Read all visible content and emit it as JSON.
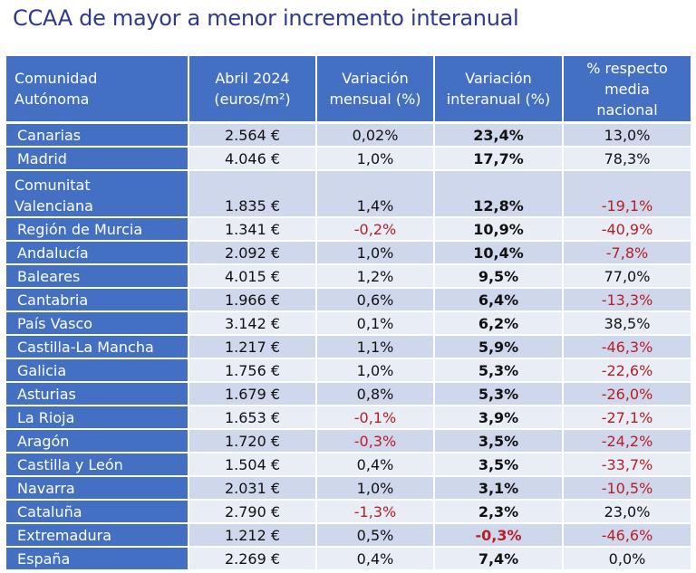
{
  "title": "CCAA de mayor a menor incremento interanual",
  "headers": {
    "community_line1": "Comunidad",
    "community_line2": "Autónoma",
    "price_line1": "Abril 2024",
    "price_line2": "(euros/m²)",
    "monthly_line1": "Variación",
    "monthly_line2": "mensual (%)",
    "annual_line1": "Variación",
    "annual_line2": "interanual (%)",
    "national_line1": "% respecto",
    "national_line2": "media",
    "national_line3": "nacional"
  },
  "rows": [
    {
      "region": "Canarias",
      "price": "2.564 €",
      "monthly": "0,02%",
      "annual": "23,4%",
      "national": "13,0%"
    },
    {
      "region": "Madrid",
      "price": "4.046 €",
      "monthly": "1,0%",
      "annual": "17,7%",
      "national": "78,3%"
    },
    {
      "region_line1": "Comunitat",
      "region_line2": "Valenciana",
      "price": "1.835 €",
      "monthly": "1,4%",
      "annual": "12,8%",
      "national": "-19,1%"
    },
    {
      "region": "Región de Murcia",
      "price": "1.341 €",
      "monthly": "-0,2%",
      "annual": "10,9%",
      "national": "-40,9%"
    },
    {
      "region": "Andalucía",
      "price": "2.092 €",
      "monthly": "1,0%",
      "annual": "10,4%",
      "national": "-7,8%"
    },
    {
      "region": "Baleares",
      "price": "4.015 €",
      "monthly": "1,2%",
      "annual": "9,5%",
      "national": "77,0%"
    },
    {
      "region": "Cantabria",
      "price": "1.966 €",
      "monthly": "0,6%",
      "annual": "6,4%",
      "national": "-13,3%"
    },
    {
      "region": "País Vasco",
      "price": "3.142 €",
      "monthly": "0,1%",
      "annual": "6,2%",
      "national": "38,5%"
    },
    {
      "region": "Castilla-La Mancha",
      "price": "1.217 €",
      "monthly": "1,1%",
      "annual": "5,9%",
      "national": "-46,3%"
    },
    {
      "region": "Galicia",
      "price": "1.756 €",
      "monthly": "1,0%",
      "annual": "5,3%",
      "national": "-22,6%"
    },
    {
      "region": "Asturias",
      "price": "1.679 €",
      "monthly": "0,8%",
      "annual": "5,3%",
      "national": "-26,0%"
    },
    {
      "region": "La Rioja",
      "price": "1.653 €",
      "monthly": "-0,1%",
      "annual": "3,9%",
      "national": "-27,1%"
    },
    {
      "region": "Aragón",
      "price": "1.720 €",
      "monthly": "-0,3%",
      "annual": "3,5%",
      "national": "-24,2%"
    },
    {
      "region": "Castilla y León",
      "price": "1.504 €",
      "monthly": "0,4%",
      "annual": "3,5%",
      "national": "-33,7%"
    },
    {
      "region": "Navarra",
      "price": "2.031 €",
      "monthly": "1,0%",
      "annual": "3,1%",
      "national": "-10,5%"
    },
    {
      "region": "Cataluña",
      "price": "2.790 €",
      "monthly": "-1,3%",
      "annual": "2,3%",
      "national": "23,0%"
    },
    {
      "region": "Extremadura",
      "price": "1.212 €",
      "monthly": "0,5%",
      "annual": "-0,3%",
      "national": "-46,6%"
    },
    {
      "region": "España",
      "price": "2.269 €",
      "monthly": "0,4%",
      "annual": "7,4%",
      "national": "0,0%"
    }
  ],
  "colors": {
    "header_bg": "#4470c4",
    "row_dark": "#cfd7ec",
    "row_light": "#e9edf6",
    "negative": "#b81f24",
    "title": "#2e3a8c"
  }
}
